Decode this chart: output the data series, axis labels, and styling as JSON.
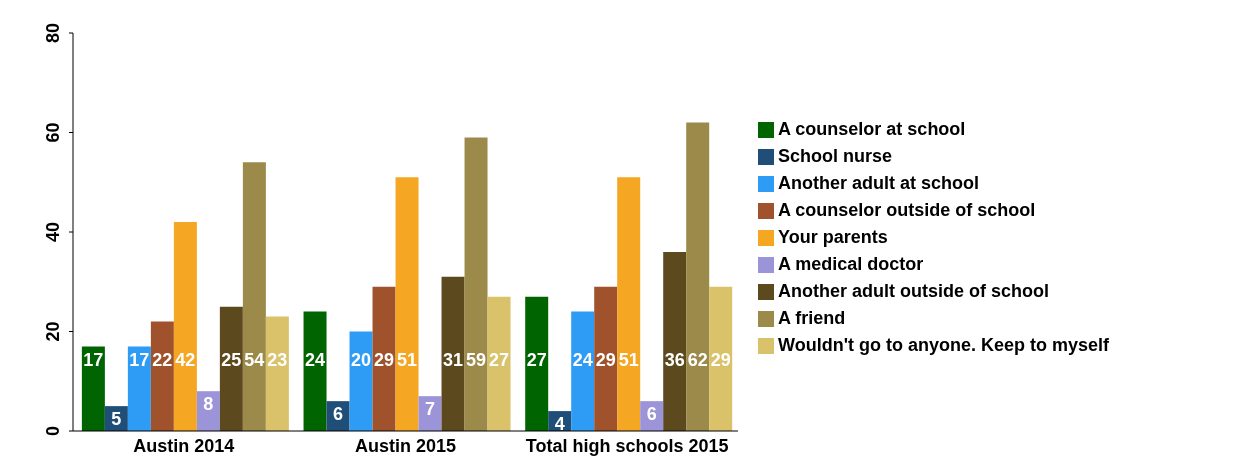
{
  "chart_data": {
    "type": "bar",
    "categories": [
      "Austin  2014",
      "Austin 2015",
      "Total high schools 2015"
    ],
    "series": [
      {
        "name": "A counselor at school",
        "color": "#006400",
        "values": [
          17,
          24,
          27
        ]
      },
      {
        "name": "School nurse",
        "color": "#1f4e79",
        "values": [
          5,
          6,
          4
        ]
      },
      {
        "name": "Another adult at school",
        "color": "#2e9cf5",
        "values": [
          17,
          20,
          24
        ]
      },
      {
        "name": "A counselor outside of school",
        "color": "#a0522d",
        "values": [
          22,
          29,
          29
        ]
      },
      {
        "name": "Your parents",
        "color": "#f5a623",
        "values": [
          42,
          51,
          51
        ]
      },
      {
        "name": "A medical doctor",
        "color": "#9b94d8",
        "values": [
          8,
          7,
          6
        ]
      },
      {
        "name": "Another adult outside of school",
        "color": "#5c4a1e",
        "values": [
          25,
          31,
          36
        ]
      },
      {
        "name": "A friend",
        "color": "#9c8a4a",
        "values": [
          54,
          59,
          62
        ]
      },
      {
        "name": "Wouldn't go to anyone. Keep to myself",
        "color": "#d9c26a",
        "values": [
          23,
          27,
          29
        ]
      }
    ],
    "ylim": [
      0,
      80
    ],
    "yticks": [
      0,
      20,
      40,
      60,
      80
    ],
    "grid": false,
    "legend": "right",
    "data_labels": true
  }
}
